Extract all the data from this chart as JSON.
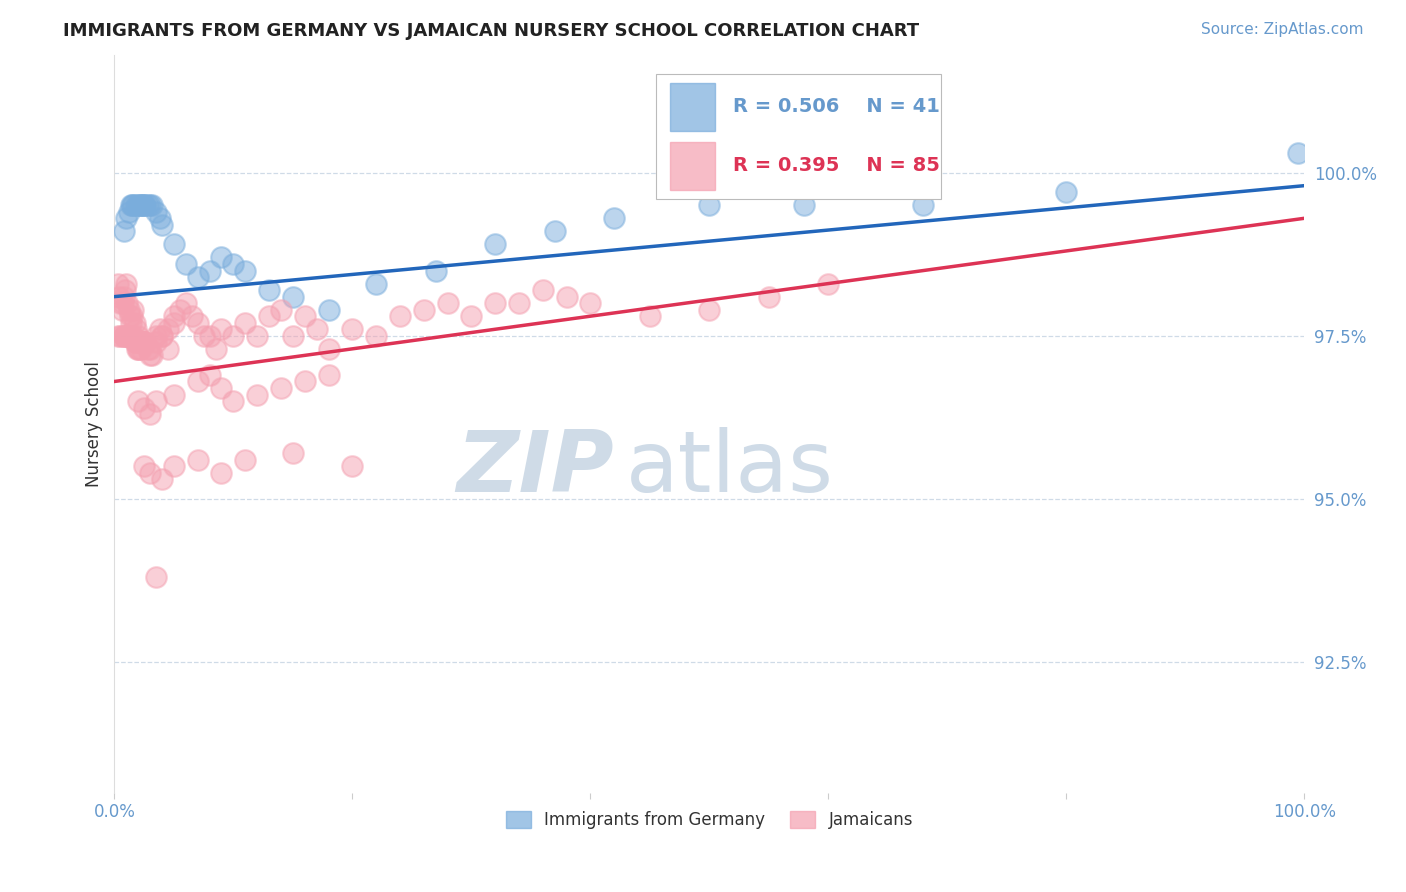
{
  "title": "IMMIGRANTS FROM GERMANY VS JAMAICAN NURSERY SCHOOL CORRELATION CHART",
  "source": "Source: ZipAtlas.com",
  "ylabel": "Nursery School",
  "yticks": [
    92.5,
    95.0,
    97.5,
    100.0
  ],
  "ytick_labels": [
    "92.5%",
    "95.0%",
    "97.5%",
    "100.0%"
  ],
  "xlim": [
    0.0,
    100.0
  ],
  "ylim": [
    90.5,
    101.8
  ],
  "legend_blue_r": "R = 0.506",
  "legend_blue_n": "N = 41",
  "legend_pink_r": "R = 0.395",
  "legend_pink_n": "N = 85",
  "legend_label_blue": "Immigrants from Germany",
  "legend_label_pink": "Jamaicans",
  "blue_color": "#7AADDC",
  "pink_color": "#F4A0B0",
  "blue_line_color": "#2266BB",
  "pink_line_color": "#DD3355",
  "title_color": "#222222",
  "axis_label_color": "#6699CC",
  "watermark_zip_color": "#BBCCDD",
  "watermark_atlas_color": "#BBCCDD",
  "background_color": "#FFFFFF",
  "blue_x": [
    0.8,
    1.0,
    1.2,
    1.4,
    1.5,
    1.6,
    1.8,
    2.0,
    2.1,
    2.2,
    2.3,
    2.4,
    2.5,
    2.6,
    2.8,
    3.0,
    3.2,
    3.5,
    3.8,
    4.0,
    5.0,
    6.0,
    7.0,
    8.0,
    9.0,
    10.0,
    11.0,
    13.0,
    15.0,
    18.0,
    22.0,
    27.0,
    32.0,
    37.0,
    42.0,
    50.0,
    58.0,
    68.0,
    80.0,
    99.5
  ],
  "blue_y": [
    99.1,
    99.3,
    99.4,
    99.5,
    99.5,
    99.5,
    99.5,
    99.5,
    99.5,
    99.5,
    99.5,
    99.5,
    99.5,
    99.5,
    99.5,
    99.5,
    99.5,
    99.4,
    99.3,
    99.2,
    98.9,
    98.6,
    98.4,
    98.5,
    98.7,
    98.6,
    98.5,
    98.2,
    98.1,
    97.9,
    98.3,
    98.5,
    98.9,
    99.1,
    99.3,
    99.5,
    99.5,
    99.5,
    99.7,
    100.3
  ],
  "blue_line_x0": 0.0,
  "blue_line_y0": 98.1,
  "blue_line_x1": 100.0,
  "blue_line_y1": 99.8,
  "pink_line_x0": 0.0,
  "pink_line_y0": 96.8,
  "pink_line_x1": 100.0,
  "pink_line_y1": 99.3,
  "pink_x": [
    0.3,
    0.5,
    0.7,
    0.8,
    0.9,
    1.0,
    1.1,
    1.2,
    1.3,
    1.4,
    1.5,
    1.6,
    1.7,
    1.8,
    1.9,
    2.0,
    2.1,
    2.2,
    2.3,
    2.4,
    2.5,
    2.6,
    2.8,
    3.0,
    3.2,
    3.5,
    3.8,
    4.0,
    4.5,
    5.0,
    5.5,
    6.0,
    6.5,
    7.0,
    7.5,
    8.0,
    8.5,
    9.0,
    10.0,
    11.0,
    12.0,
    13.0,
    14.0,
    15.0,
    16.0,
    17.0,
    18.0,
    20.0,
    22.0,
    24.0,
    26.0,
    28.0,
    30.0,
    32.0,
    34.0,
    36.0,
    38.0,
    40.0,
    45.0,
    50.0,
    55.0,
    60.0
  ],
  "pink_y": [
    97.5,
    97.5,
    97.5,
    97.5,
    97.5,
    97.5,
    97.5,
    97.5,
    97.5,
    97.5,
    97.5,
    97.5,
    97.4,
    97.4,
    97.3,
    97.3,
    97.3,
    97.3,
    97.4,
    97.4,
    97.4,
    97.4,
    97.3,
    97.2,
    97.2,
    97.5,
    97.6,
    97.5,
    97.3,
    97.8,
    97.9,
    98.0,
    97.8,
    97.7,
    97.5,
    97.5,
    97.3,
    97.6,
    97.5,
    97.7,
    97.5,
    97.8,
    97.9,
    97.5,
    97.8,
    97.6,
    97.3,
    97.6,
    97.5,
    97.8,
    97.9,
    98.0,
    97.8,
    98.0,
    98.0,
    98.2,
    98.1,
    98.0,
    97.8,
    97.9,
    98.1,
    98.3
  ],
  "pink_extra_x": [
    0.3,
    0.4,
    0.5,
    0.6,
    0.7,
    0.8,
    0.9,
    1.0,
    1.1,
    1.2,
    1.3,
    1.4,
    1.5,
    1.6,
    1.7,
    1.8,
    2.0,
    2.2,
    2.5,
    3.0,
    3.5,
    4.0,
    4.5,
    5.0
  ],
  "pink_extra_y": [
    98.3,
    98.1,
    98.0,
    97.9,
    98.0,
    98.1,
    98.2,
    98.3,
    98.0,
    97.9,
    97.8,
    97.7,
    97.8,
    97.9,
    97.7,
    97.6,
    97.5,
    97.4,
    97.4,
    97.3,
    97.4,
    97.5,
    97.6,
    97.7
  ],
  "pink_low_x": [
    2.0,
    2.5,
    3.0,
    3.5,
    5.0,
    7.0,
    8.0,
    9.0,
    10.0,
    12.0,
    14.0,
    16.0,
    18.0
  ],
  "pink_low_y": [
    96.5,
    96.4,
    96.3,
    96.5,
    96.6,
    96.8,
    96.9,
    96.7,
    96.5,
    96.6,
    96.7,
    96.8,
    96.9
  ],
  "pink_very_low_x": [
    2.5,
    3.0,
    4.0,
    5.0,
    7.0,
    9.0,
    11.0,
    15.0,
    20.0
  ],
  "pink_very_low_y": [
    95.5,
    95.4,
    95.3,
    95.5,
    95.6,
    95.4,
    95.6,
    95.7,
    95.5
  ],
  "pink_lowest_x": [
    3.5
  ],
  "pink_lowest_y": [
    93.8
  ]
}
